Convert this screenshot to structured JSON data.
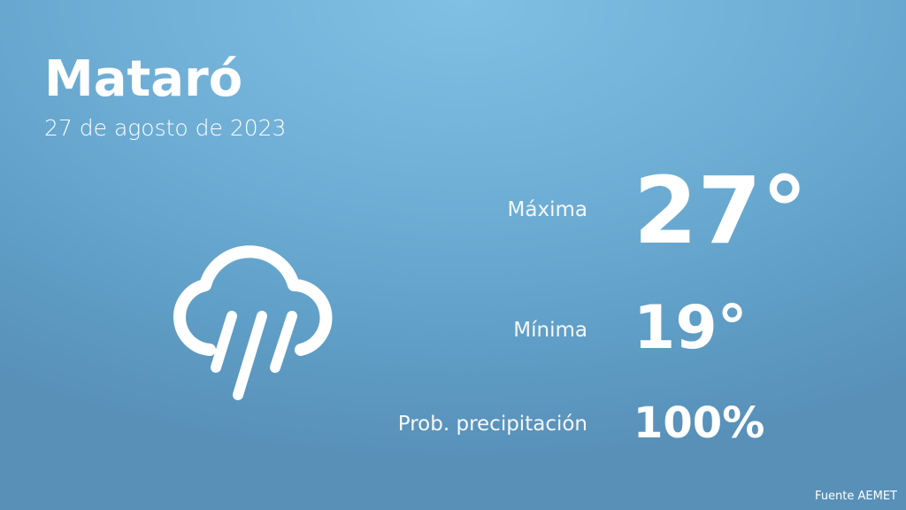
{
  "city": "Mataró",
  "date": "27 de agosto de 2023",
  "weather_icon": "cloud-rain-icon",
  "max": {
    "label": "Máxima",
    "value": "27°"
  },
  "min": {
    "label": "Mínima",
    "value": "19°"
  },
  "precip": {
    "label": "Prob. precipitación",
    "value": "100%"
  },
  "source": "Fuente AEMET",
  "colors": {
    "background_top": "#80c0e4",
    "background_bottom": "#5890b8",
    "text": "#ffffff"
  }
}
